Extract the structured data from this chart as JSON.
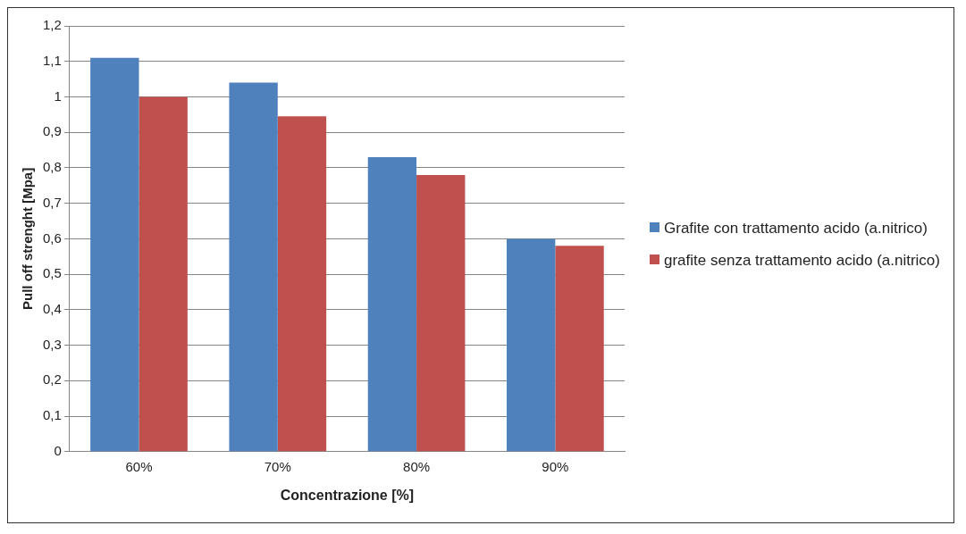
{
  "chart_data": {
    "type": "bar",
    "xlabel": "Concentrazione [%]",
    "ylabel": "Pull off strenght [Mpa]",
    "categories": [
      "60%",
      "70%",
      "80%",
      "90%"
    ],
    "series": [
      {
        "name": "Grafite con trattamento acido (a.nitrico)",
        "color": "#4f81bd",
        "values": [
          1.11,
          1.04,
          0.83,
          0.6
        ]
      },
      {
        "name": "grafite senza trattamento acido (a.nitrico)",
        "color": "#c0504d",
        "values": [
          1.0,
          0.945,
          0.78,
          0.58
        ]
      }
    ],
    "ylim": [
      0,
      1.2
    ],
    "yticks": [
      0,
      {
        "value": 0.1,
        "label": "0,1"
      },
      {
        "value": 0.2,
        "label": "0,2"
      },
      {
        "value": 0.3,
        "label": "0,3"
      },
      {
        "value": 0.4,
        "label": "0,4"
      },
      {
        "value": 0.5,
        "label": "0,5"
      },
      {
        "value": 0.6,
        "label": "0,6"
      },
      {
        "value": 0.7,
        "label": "0,7"
      },
      {
        "value": 0.8,
        "label": "0,8"
      },
      {
        "value": 0.9,
        "label": "0,9"
      },
      1,
      {
        "value": 1.1,
        "label": "1,1"
      },
      {
        "value": 1.2,
        "label": "1,2"
      }
    ],
    "grid": "y",
    "legend": "right"
  }
}
